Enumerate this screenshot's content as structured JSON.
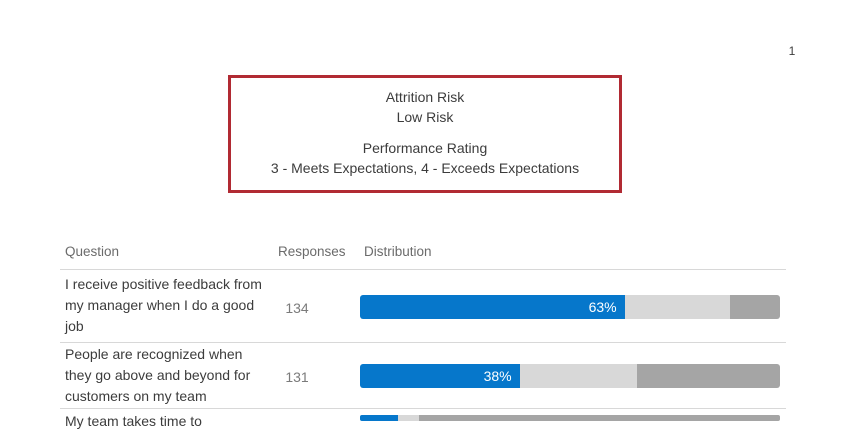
{
  "page": {
    "number": "1"
  },
  "summary_box": {
    "border_color": "#b12a33",
    "attrition_label": "Attrition Risk",
    "attrition_value": "Low Risk",
    "performance_label": "Performance Rating",
    "performance_value": "3 - Meets Expectations, 4 - Exceeds Expectations"
  },
  "table": {
    "headers": {
      "question": "Question",
      "responses": "Responses",
      "distribution": "Distribution"
    },
    "rows": [
      {
        "question": "I receive positive feedback from my manager when I do a good job",
        "responses": "134",
        "segments": [
          {
            "pct": 63,
            "color": "#0677cb",
            "label": "63%"
          },
          {
            "pct": 25,
            "color": "#d8d8d8",
            "label": ""
          },
          {
            "pct": 12,
            "color": "#a5a5a5",
            "label": ""
          }
        ]
      },
      {
        "question": "People are recognized when they go above and beyond for customers on my team",
        "responses": "131",
        "segments": [
          {
            "pct": 38,
            "color": "#0677cb",
            "label": "38%"
          },
          {
            "pct": 28,
            "color": "#d8d8d8",
            "label": ""
          },
          {
            "pct": 34,
            "color": "#a5a5a5",
            "label": ""
          }
        ]
      },
      {
        "question": "My team takes time to",
        "responses": "",
        "segments": [
          {
            "pct": 9,
            "color": "#0677cb",
            "label": ""
          },
          {
            "pct": 5,
            "color": "#d8d8d8",
            "label": ""
          },
          {
            "pct": 86,
            "color": "#a5a5a5",
            "label": ""
          }
        ]
      }
    ]
  },
  "chart_data": {
    "type": "bar",
    "orientation": "horizontal-stacked",
    "title": "Distribution",
    "categories": [
      "I receive positive feedback from my manager when I do a good job",
      "People are recognized when they go above and beyond for customers on my team",
      "My team takes time to"
    ],
    "responses": [
      134,
      131,
      null
    ],
    "series": [
      {
        "name": "blue-segment",
        "color": "#0677cb",
        "values": [
          63,
          38,
          9
        ]
      },
      {
        "name": "light-gray-segment",
        "color": "#d8d8d8",
        "values": [
          25,
          28,
          5
        ]
      },
      {
        "name": "dark-gray-segment",
        "color": "#a5a5a5",
        "values": [
          12,
          34,
          86
        ]
      }
    ],
    "data_labels": [
      "63%",
      "38%",
      ""
    ],
    "xlim": [
      0,
      100
    ]
  }
}
